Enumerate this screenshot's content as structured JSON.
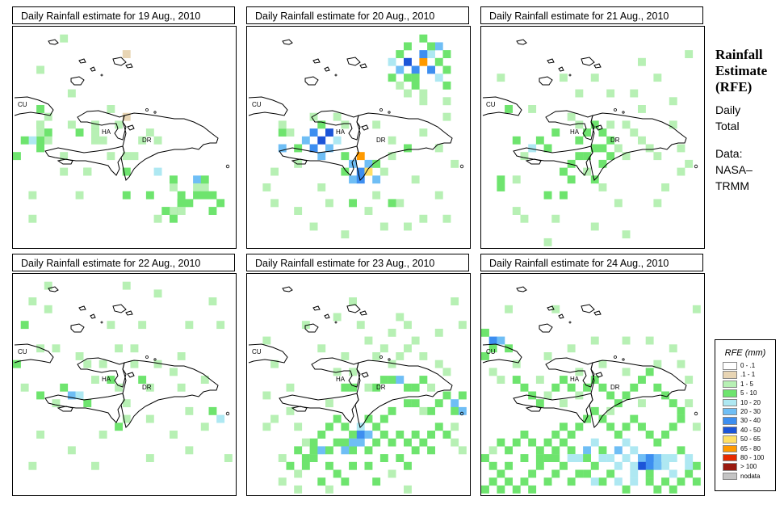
{
  "panels": [
    {
      "title": "Daily Rainfall estimate for  19 Aug., 2010",
      "labels": {
        "cu": "CU",
        "ha": "HA",
        "dr": "DR"
      }
    },
    {
      "title": "Daily Rainfall estimate for  20 Aug., 2010",
      "labels": {
        "cu": "CU",
        "ha": "HA",
        "dr": "DR"
      }
    },
    {
      "title": "Daily Rainfall estimate for  21 Aug., 2010",
      "labels": {
        "cu": "CU",
        "ha": "HA",
        "dr": "DR"
      }
    },
    {
      "title": "Daily Rainfall estimate for  22 Aug., 2010",
      "labels": {
        "cu": "CU",
        "ha": "HA",
        "dr": "DR"
      }
    },
    {
      "title": "Daily Rainfall estimate for  23 Aug., 2010",
      "labels": {
        "cu": "CU",
        "ha": "HA",
        "dr": "DR"
      }
    },
    {
      "title": "Daily Rainfall estimate for  24 Aug., 2010",
      "labels": {
        "cu": "CU",
        "ha": "HA",
        "dr": "DR"
      }
    }
  ],
  "side": {
    "title_line1": "Rainfall",
    "title_line2": "Estimate",
    "title_line3": "(RFE)",
    "period_line1": "Daily",
    "period_line2": "Total",
    "source_line1": "Data:",
    "source_line2": "NASA–",
    "source_line3": "TRMM"
  },
  "legend": {
    "title": "RFE (mm)",
    "items": [
      {
        "label": "0 - .1",
        "color": "#ffffff"
      },
      {
        "label": ".1 - 1",
        "color": "#e8d5b4"
      },
      {
        "label": "1 - 5",
        "color": "#b7f0b4"
      },
      {
        "label": "5 - 10",
        "color": "#6ee46e"
      },
      {
        "label": "10 - 20",
        "color": "#aee8f2"
      },
      {
        "label": "20 - 30",
        "color": "#6fbef5"
      },
      {
        "label": "30 - 40",
        "color": "#3d8ef0"
      },
      {
        "label": "40 - 50",
        "color": "#1c55d8"
      },
      {
        "label": "50 - 65",
        "color": "#ffe066"
      },
      {
        "label": "65 - 80",
        "color": "#ff9a00"
      },
      {
        "label": "80 - 100",
        "color": "#e62a00"
      },
      {
        "label": "> 100",
        "color": "#9a1a10"
      },
      {
        "label": "nodata",
        "color": "#c4c4c4"
      }
    ]
  },
  "rain_grids": [
    [
      "10,13,2",
      "4,13,3",
      "10,14,2",
      "4,14,2",
      "3,14,3",
      "7,12,2",
      "6,18,2",
      "3,15,3",
      "8,13,3",
      "10,12,2",
      "3,12,3",
      "11,14,2",
      "10,13,3",
      "12,10,2",
      "16,14,2",
      "10,13,2",
      "0,16,3",
      "3,13,2",
      "2,14,4",
      "9,18,3",
      "14,3,1",
      "13,12,2",
      "4,11,2",
      "14,11,1",
      "6,1,2",
      "3,12,2",
      "3,10,3",
      "1,14,3",
      "3,5,2",
      "7,8,2",
      "8,21,2",
      "12,16,2",
      "14,16,2",
      "18,14,2",
      "15,16,2",
      "9,18,2",
      "14,18,2",
      "14,21,3",
      "14,18,3",
      "6,16,2",
      "2,21,2",
      "17,13,2",
      "18,18,4",
      "20,23,2",
      "17,21,3",
      "18,24,2",
      "21,21,3",
      "21,23,3",
      "24,20,2",
      "23,19,5",
      "21,22,3",
      "23,20,2",
      "22,22,3",
      "20,20,2",
      "25,21,3",
      "21,22,3",
      "2,24,2",
      "23,21,3",
      "19,23,3",
      "26,22,3",
      "24,19,3",
      "20,24,3",
      "25,23,3",
      "21,23,2",
      "20,19,3",
      "24,21,3"
    ],
    [
      "4,13,3",
      "4,15,5",
      "8,13,6",
      "9,14,7",
      "8,15,6",
      "7,14,5",
      "10,13,7",
      "9,16,5",
      "10,15,5",
      "9,12,3",
      "11,14,4",
      "5,13,2",
      "6,15,3",
      "12,16,3",
      "13,17,5",
      "14,18,6",
      "15,17,5",
      "13,19,5",
      "14,16,9",
      "15,18,8",
      "14,19,6",
      "16,19,5",
      "16,17,3",
      "12,18,3",
      "17,18,2",
      "18,16,2",
      "12,12,2",
      "11,11,2",
      "8,11,2",
      "6,17,2",
      "3,18,2",
      "18,4,4",
      "19,5,5",
      "20,4,7",
      "21,5,6",
      "22,4,9",
      "23,5,6",
      "24,4,3",
      "25,5,3",
      "23,3,4",
      "24,2,5",
      "22,3,6",
      "24,6,4",
      "20,6,3",
      "21,7,3",
      "25,7,3",
      "19,7,2",
      "18,6,3",
      "20,8,2",
      "22,8,2",
      "21,6,3",
      "22,1,3",
      "23,2,3",
      "19,3,3",
      "20,2,3",
      "25,3,3",
      "22,9,2",
      "25,9,2",
      "16,12,2",
      "18,14,2",
      "20,15,3",
      "22,13,2",
      "24,15,2",
      "26,17,2",
      "3,22,2",
      "6,23,2",
      "9,20,2",
      "13,22,3",
      "15,23,2",
      "17,25,2",
      "19,22,2",
      "24,21,2",
      "8,25,2",
      "2,20,2",
      "25,11,2",
      "18,22,3",
      "20,25,2",
      "22,24,2",
      "25,24,2",
      "4,12,2",
      "10,22,2",
      "12,26,2",
      "16,21,2",
      "21,19,2"
    ],
    [
      "3,10,3",
      "4,14,3",
      "6,15,4",
      "5,16,2",
      "7,14,3",
      "8,15,3",
      "9,13,3",
      "12,14,3",
      "13,13,3",
      "14,12,3",
      "15,13,3",
      "16,14,3",
      "17,15,2",
      "18,16,2",
      "16,16,3",
      "15,15,3",
      "14,15,3",
      "13,16,3",
      "12,16,3",
      "11,17,3",
      "10,18,3",
      "11,19,3",
      "14,19,3",
      "15,17,3",
      "13,18,2",
      "19,13,2",
      "20,14,2",
      "21,15,2",
      "22,16,2",
      "18,12,2",
      "16,12,2",
      "12,12,2",
      "11,11,2",
      "4,19,2",
      "2,19,3",
      "2,20,3",
      "8,21,3",
      "10,21,3",
      "15,20,2",
      "6,10,2",
      "10,6,2",
      "24,12,2",
      "26,3,2",
      "24,9,2",
      "20,4,2",
      "4,23,2",
      "8,27,2",
      "14,25,2",
      "18,26,2",
      "25,18,2",
      "25,15,2",
      "23,20,2",
      "22,22,2",
      "17,22,2",
      "16,8,2",
      "20,10,2",
      "2,6,2",
      "5,24,2",
      "9,24,2",
      "12,8,2",
      "14,6,2",
      "19,8,2",
      "22,6,2",
      "26,17,2"
    ],
    [
      "0,11,3",
      "1,6,3",
      "4,4,2",
      "9,11,2",
      "11,11,2",
      "12,13,3",
      "15,11,2",
      "16,13,3",
      "17,14,2",
      "14,16,2",
      "9,16,3",
      "7,15,5",
      "8,15,4",
      "6,14,3",
      "5,16,2",
      "3,15,3",
      "1,14,2",
      "10,13,2",
      "8,10,2",
      "3,9,2",
      "13,9,2",
      "15,9,2",
      "18,11,2",
      "20,12,2",
      "21,14,2",
      "22,17,2",
      "26,18,4",
      "25,17,3",
      "24,19,2",
      "13,19,3",
      "14,18,2",
      "11,20,2",
      "3,20,2",
      "2,24,2",
      "20,20,2",
      "22,22,2",
      "17,23,2",
      "10,24,2",
      "4,1,2",
      "14,1,2",
      "18,2,2",
      "22,6,2",
      "16,6,2",
      "26,6,2",
      "25,3,2",
      "21,10,2",
      "12,6,2",
      "5,9,2",
      "2,3,2",
      "24,13,2",
      "13,14,2",
      "17,18,2",
      "7,22,2",
      "27,23,2"
    ],
    [
      "12,14,3",
      "13,14,3",
      "15,14,2",
      "16,14,3",
      "17,13,3",
      "18,13,3",
      "19,13,5",
      "20,14,3",
      "21,14,3",
      "22,13,3",
      "23,14,2",
      "25,15,3",
      "26,16,5",
      "27,15,3",
      "26,17,3",
      "27,17,5",
      "24,16,3",
      "23,17,3",
      "22,17,2",
      "21,16,3",
      "20,16,3",
      "18,17,3",
      "17,18,3",
      "16,19,3",
      "15,18,3",
      "14,19,4",
      "13,20,3",
      "12,19,3",
      "11,18,3",
      "10,19,3",
      "9,20,3",
      "8,21,3",
      "7,21,2",
      "6,22,3",
      "7,23,3",
      "8,22,3",
      "9,22,5",
      "10,22,3",
      "11,21,3",
      "12,21,3",
      "13,22,3",
      "14,21,5",
      "15,22,3",
      "16,21,3",
      "17,20,3",
      "18,21,3",
      "19,20,3",
      "20,21,3",
      "21,20,3",
      "14,20,6",
      "15,20,5",
      "13,21,5",
      "12,22,5",
      "8,23,3",
      "7,24,3",
      "6,25,2",
      "5,24,3",
      "4,23,2",
      "10,24,3",
      "11,25,3",
      "13,24,3",
      "15,24,3",
      "17,23,3",
      "19,23,3",
      "21,22,3",
      "22,21,3",
      "23,20,3",
      "24,19,3",
      "25,20,3",
      "23,22,3",
      "20,24,3",
      "18,25,2",
      "16,26,3",
      "12,26,3",
      "9,26,3",
      "6,27,2",
      "4,26,2",
      "21,8,2",
      "20,9,2",
      "22,10,2",
      "24,11,2",
      "25,12,2",
      "19,10,2",
      "18,11,2",
      "13,12,2",
      "11,12,2",
      "10,16,2",
      "5,17,2",
      "3,18,2",
      "2,19,2",
      "6,19,2",
      "26,19,2",
      "26,21,2",
      "27,22,2",
      "17,9,2",
      "15,8,2",
      "24,7,2",
      "13,3,2",
      "9,9,2",
      "3,11,2",
      "2,15,2",
      "27,6,2",
      "26,3,2",
      "19,5,2",
      "20,6,2",
      "18,7,2",
      "14,6,2",
      "11,5,2",
      "7,6,2",
      "2,8,2",
      "12,10,2",
      "16,10,2",
      "5,14,2",
      "10,27,2",
      "20,27,2"
    ],
    [
      "0,7,3",
      "1,8,6",
      "2,8,5",
      "1,9,3",
      "3,9,3",
      "0,10,3",
      "1,12,2",
      "4,13,3",
      "5,14,3",
      "6,15,3",
      "7,16,3",
      "8,15,2",
      "9,14,3",
      "10,13,3",
      "11,14,3",
      "12,15,2",
      "13,14,3",
      "14,13,3",
      "15,14,3",
      "16,15,3",
      "17,16,3",
      "18,15,3",
      "19,14,3",
      "20,13,3",
      "21,12,3",
      "22,14,3",
      "23,15,3",
      "24,16,3",
      "25,17,3",
      "26,16,2",
      "25,18,3",
      "24,19,3",
      "23,20,3",
      "22,21,3",
      "21,20,3",
      "20,19,3",
      "19,18,3",
      "18,19,3",
      "17,20,3",
      "16,19,3",
      "15,18,3",
      "14,17,3",
      "13,18,3",
      "12,19,3",
      "11,20,3",
      "10,21,3",
      "9,22,3",
      "8,23,3",
      "7,24,3",
      "6,25,3",
      "5,26,3",
      "4,27,3",
      "3,26,3",
      "2,25,3",
      "1,24,3",
      "0,23,3",
      "1,22,2",
      "2,21,3",
      "3,22,3",
      "4,21,3",
      "5,20,3",
      "6,21,3",
      "7,22,3",
      "8,21,3",
      "9,20,3",
      "10,19,3",
      "11,22,3",
      "12,23,4",
      "13,22,5",
      "14,21,4",
      "15,22,3",
      "16,23,4",
      "17,22,5",
      "18,21,4",
      "19,22,4",
      "20,23,5",
      "21,24,6",
      "22,23,5",
      "23,24,4",
      "24,23,4",
      "25,22,3",
      "26,23,4",
      "27,24,3",
      "20,24,7",
      "21,23,6",
      "22,24,5",
      "23,23,4",
      "19,24,4",
      "18,23,4",
      "16,25,3",
      "17,26,4",
      "19,26,4",
      "21,26,3",
      "23,26,3",
      "25,26,3",
      "26,25,3",
      "14,24,3",
      "13,25,3",
      "12,25,3",
      "10,24,3",
      "9,25,3",
      "8,26,3",
      "6,27,3",
      "11,26,3",
      "15,26,3",
      "14,26,4",
      "18,27,3",
      "22,27,3",
      "24,27,3",
      "2,27,3",
      "0,27,3",
      "1,26,3",
      "3,24,3",
      "5,23,3",
      "7,23,3",
      "9,23,3",
      "11,23,4",
      "13,23,3",
      "15,23,4",
      "17,24,4",
      "19,25,4",
      "21,25,3",
      "24,25,4",
      "26,24,4",
      "27,26,3",
      "12,12,2",
      "15,11,2",
      "18,12,2",
      "22,11,2",
      "20,16,2",
      "16,17,2",
      "10,16,2",
      "7,13,2",
      "4,11,2",
      "2,13,2",
      "24,9,2",
      "25,11,2",
      "21,8,2",
      "18,8,2",
      "14,8,2",
      "11,9,2",
      "8,10,2",
      "3,4,2",
      "9,4,2",
      "27,4,2",
      "26,13,2",
      "27,19,2"
    ]
  ]
}
